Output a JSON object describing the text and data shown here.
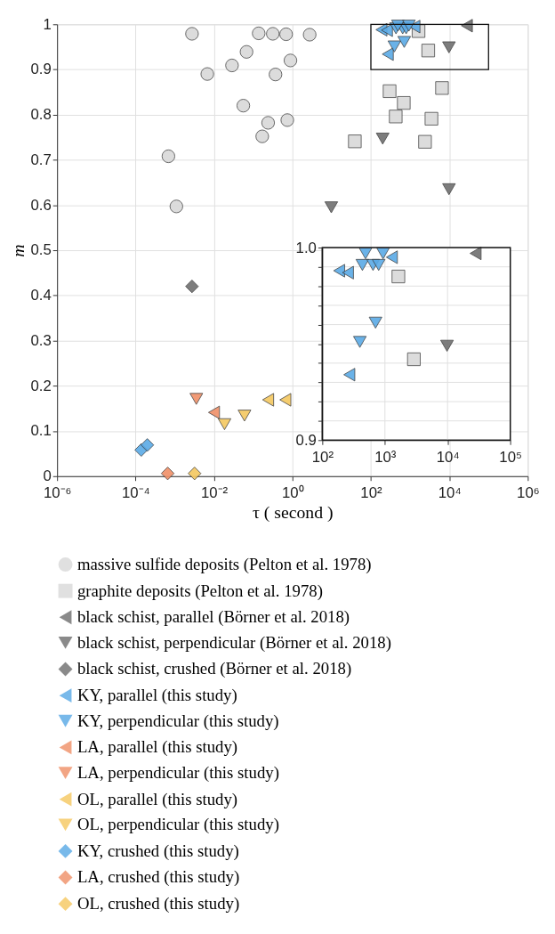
{
  "chart_data": [
    {
      "type": "scatter",
      "xlabel": "τ ( second )",
      "ylabel": "m",
      "log": "x",
      "grid": true,
      "legend": "bottom",
      "xlim": [
        1e-06,
        1000000.0
      ],
      "xticks": [
        {
          "value": 1e-06,
          "label": "10⁻⁶"
        },
        {
          "value": 0.0001,
          "label": "10⁻⁴"
        },
        {
          "value": 0.01,
          "label": "10⁻²"
        },
        {
          "value": 1,
          "label": "10⁰"
        },
        {
          "value": 100,
          "label": "10²"
        },
        {
          "value": 10000,
          "label": "10⁴"
        },
        {
          "value": 1000000.0,
          "label": "10⁶"
        }
      ],
      "ylim": [
        0,
        1
      ],
      "yticks": [
        0,
        0.1,
        0.2,
        0.3,
        0.4,
        0.5,
        0.6,
        0.7,
        0.8,
        0.9,
        1
      ],
      "series": [
        {
          "name": "massive sulfide deposits (Pelton et al. 1978)",
          "color": "#d9d9d9",
          "marker": "circle",
          "x": [
            0.00275,
            0.138,
            0.316,
            0.69,
            2.75,
            0.0676,
            0.0288,
            0.89,
            0.00676,
            0.37,
            0.056,
            0.24,
            0.74,
            0.17,
            0.00069,
            0.0011
          ],
          "values": [
            0.979,
            0.98,
            0.979,
            0.978,
            0.977,
            0.939,
            0.909,
            0.92,
            0.89,
            0.889,
            0.82,
            0.782,
            0.788,
            0.752,
            0.708,
            0.597
          ]
        },
        {
          "name": "graphite deposits (Pelton et al. 1978)",
          "color": "#d9d9d9",
          "marker": "square",
          "x": [
            1640,
            2900,
            300,
            690,
            430,
            6500,
            3500,
            39,
            2400
          ],
          "values": [
            0.985,
            0.942,
            0.852,
            0.826,
            0.796,
            0.859,
            0.791,
            0.741,
            0.74
          ]
        },
        {
          "name": "black schist, parallel (Börner et al. 2018)",
          "color": "#707070",
          "marker": "triangle-left",
          "x": [
            28000
          ],
          "values": [
            0.997
          ]
        },
        {
          "name": "black schist, perpendicular (Börner et al. 2018)",
          "color": "#707070",
          "marker": "triangle-down",
          "x": [
            9800,
            200,
            9.8,
            9800
          ],
          "values": [
            0.949,
            0.747,
            0.595,
            0.635
          ]
        },
        {
          "name": "black schist, crushed (Börner et al. 2018)",
          "color": "#707070",
          "marker": "diamond",
          "x": [
            0.00275
          ],
          "values": [
            0.42
          ]
        },
        {
          "name": "KY, parallel (this study)",
          "color": "#5aaae6",
          "marker": "triangle-left",
          "x": [
            186,
            257,
            1290,
            270
          ],
          "values": [
            0.988,
            0.987,
            0.995,
            0.934
          ]
        },
        {
          "name": "KY, perpendicular (this study)",
          "color": "#5aaae6",
          "marker": "triangle-down",
          "x": [
            437,
            646,
            794,
            490,
            933,
            398,
            708
          ],
          "values": [
            0.991,
            0.991,
            0.991,
            0.997,
            0.997,
            0.951,
            0.961
          ]
        },
        {
          "name": "LA, parallel (this study)",
          "color": "#f09068",
          "marker": "triangle-left",
          "x": [
            0.01
          ],
          "values": [
            0.141
          ]
        },
        {
          "name": "LA, perpendicular (this study)",
          "color": "#f09068",
          "marker": "triangle-down",
          "x": [
            0.00355
          ],
          "values": [
            0.171
          ]
        },
        {
          "name": "OL, parallel (this study)",
          "color": "#f5c860",
          "marker": "triangle-left",
          "x": [
            0.24,
            0.66
          ],
          "values": [
            0.169,
            0.169
          ]
        },
        {
          "name": "OL, perpendicular (this study)",
          "color": "#f5c860",
          "marker": "triangle-down",
          "x": [
            0.0186,
            0.06
          ],
          "values": [
            0.115,
            0.134
          ]
        },
        {
          "name": "KY, crushed (this study)",
          "color": "#5aaae6",
          "marker": "diamond",
          "x": [
            0.00014,
            0.0002
          ],
          "values": [
            0.058,
            0.069
          ]
        },
        {
          "name": "LA, crushed (this study)",
          "color": "#f09068",
          "marker": "diamond",
          "x": [
            0.00066
          ],
          "values": [
            0.006
          ]
        },
        {
          "name": "OL, crushed (this study)",
          "color": "#f5c860",
          "marker": "diamond",
          "x": [
            0.0032
          ],
          "values": [
            0.006
          ]
        }
      ]
    },
    {
      "type": "scatter",
      "log": "x",
      "grid": true,
      "xlim": [
        100,
        100000
      ],
      "xticks": [
        {
          "value": 100,
          "label": "10²"
        },
        {
          "value": 1000,
          "label": "10³"
        },
        {
          "value": 10000,
          "label": "10⁴"
        },
        {
          "value": 100000,
          "label": "10⁵"
        }
      ],
      "ylim": [
        0.9,
        1
      ],
      "yticks": [
        0.9,
        {
          "value": 0.91,
          "label": null
        },
        {
          "value": 0.92,
          "label": null
        },
        {
          "value": 0.93,
          "label": null
        },
        {
          "value": 0.94,
          "label": null
        },
        {
          "value": 0.95,
          "label": null
        },
        {
          "value": 0.96,
          "label": null
        },
        {
          "value": 0.97,
          "label": null
        },
        {
          "value": 0.98,
          "label": null
        },
        {
          "value": 0.99,
          "label": null
        },
        {
          "value": 1,
          "label": "1.0"
        }
      ],
      "series": [
        {
          "color": "#d9d9d9",
          "marker": "square",
          "x": [
            1640,
            2900
          ],
          "values": [
            0.985,
            0.942
          ]
        },
        {
          "color": "#707070",
          "marker": "triangle-left",
          "x": [
            28000
          ],
          "values": [
            0.997
          ]
        },
        {
          "color": "#707070",
          "marker": "triangle-down",
          "x": [
            9800
          ],
          "values": [
            0.949
          ]
        },
        {
          "color": "#5aaae6",
          "marker": "triangle-left",
          "x": [
            186,
            257,
            1290,
            270
          ],
          "values": [
            0.988,
            0.987,
            0.995,
            0.934
          ]
        },
        {
          "color": "#5aaae6",
          "marker": "triangle-down",
          "x": [
            437,
            646,
            794,
            490,
            933,
            398,
            708
          ],
          "values": [
            0.991,
            0.991,
            0.991,
            0.997,
            0.997,
            0.951,
            0.961
          ]
        }
      ]
    }
  ]
}
